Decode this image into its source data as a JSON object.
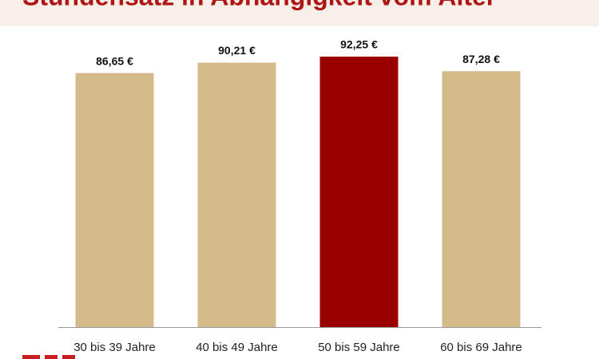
{
  "chart_data": {
    "type": "bar",
    "title": "Stundensatz in Abhängigkeit vom Alter",
    "categories": [
      "30 bis 39 Jahre",
      "40 bis 49 Jahre",
      "50 bis 59 Jahre",
      "60 bis 69 Jahre"
    ],
    "values": [
      86.65,
      90.21,
      92.25,
      87.28
    ],
    "value_labels": [
      "86,65 €",
      "90,21 €",
      "92,25 €",
      "87,28 €"
    ],
    "colors": [
      "#d5bb8a",
      "#d5bb8a",
      "#990000",
      "#d5bb8a"
    ],
    "ylim": [
      0,
      100
    ]
  }
}
